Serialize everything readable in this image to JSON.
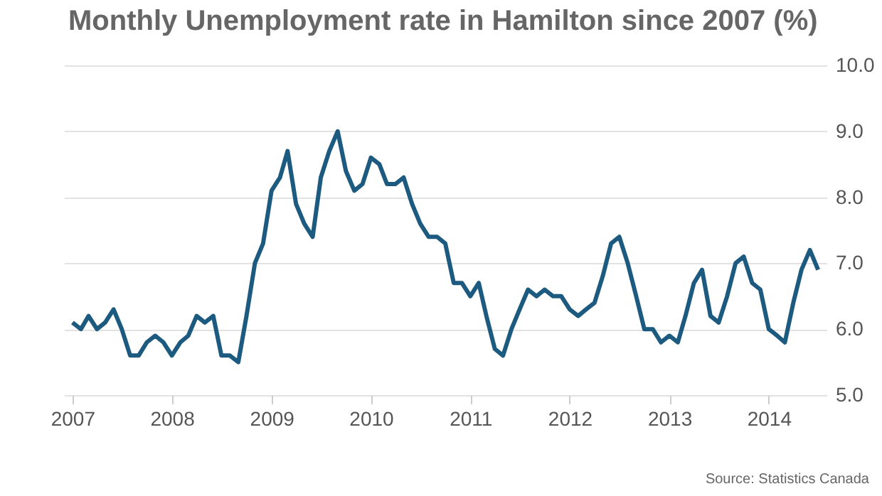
{
  "chart_data": {
    "type": "line",
    "title": "Monthly Unemployment rate in Hamilton since 2007 (%)",
    "x": [
      "2007-01",
      "2007-02",
      "2007-03",
      "2007-04",
      "2007-05",
      "2007-06",
      "2007-07",
      "2007-08",
      "2007-09",
      "2007-10",
      "2007-11",
      "2007-12",
      "2008-01",
      "2008-02",
      "2008-03",
      "2008-04",
      "2008-05",
      "2008-06",
      "2008-07",
      "2008-08",
      "2008-09",
      "2008-10",
      "2008-11",
      "2008-12",
      "2009-01",
      "2009-02",
      "2009-03",
      "2009-04",
      "2009-05",
      "2009-06",
      "2009-07",
      "2009-08",
      "2009-09",
      "2009-10",
      "2009-11",
      "2009-12",
      "2010-01",
      "2010-02",
      "2010-03",
      "2010-04",
      "2010-05",
      "2010-06",
      "2010-07",
      "2010-08",
      "2010-09",
      "2010-10",
      "2010-11",
      "2010-12",
      "2011-01",
      "2011-02",
      "2011-03",
      "2011-04",
      "2011-05",
      "2011-06",
      "2011-07",
      "2011-08",
      "2011-09",
      "2011-10",
      "2011-11",
      "2011-12",
      "2012-01",
      "2012-02",
      "2012-03",
      "2012-04",
      "2012-05",
      "2012-06",
      "2012-07",
      "2012-08",
      "2012-09",
      "2012-10",
      "2012-11",
      "2012-12",
      "2013-01",
      "2013-02",
      "2013-03",
      "2013-04",
      "2013-05",
      "2013-06",
      "2013-07",
      "2013-08",
      "2013-09",
      "2013-10",
      "2013-11",
      "2013-12",
      "2014-01",
      "2014-02",
      "2014-03",
      "2014-04",
      "2014-05",
      "2014-06",
      "2014-07"
    ],
    "series": [
      {
        "color": "#1d5a80",
        "values": [
          6.1,
          6.0,
          6.2,
          6.0,
          6.1,
          6.3,
          6.0,
          5.6,
          5.6,
          5.8,
          5.9,
          5.8,
          5.6,
          5.8,
          5.9,
          6.2,
          6.1,
          6.2,
          5.6,
          5.6,
          5.5,
          6.2,
          7.0,
          7.3,
          8.1,
          8.3,
          8.7,
          7.9,
          7.6,
          7.4,
          8.3,
          8.7,
          9.0,
          8.4,
          8.1,
          8.2,
          8.6,
          8.5,
          8.2,
          8.2,
          8.3,
          7.9,
          7.6,
          7.4,
          7.4,
          7.3,
          6.7,
          6.7,
          6.5,
          6.7,
          6.2,
          5.7,
          5.6,
          6.0,
          6.3,
          6.6,
          6.5,
          6.6,
          6.5,
          6.5,
          6.3,
          6.2,
          6.3,
          6.4,
          6.8,
          7.3,
          7.4,
          7.0,
          6.5,
          6.0,
          6.0,
          5.8,
          5.9,
          5.8,
          6.2,
          6.7,
          6.9,
          6.2,
          6.1,
          6.5,
          7.0,
          7.1,
          6.7,
          6.6,
          6.0,
          5.9,
          5.8,
          6.4,
          6.9,
          7.2,
          6.9
        ]
      }
    ],
    "xlim": [
      "2006-12",
      "2014-08"
    ],
    "xticks": [
      {
        "value": "2007",
        "label": "2007"
      },
      {
        "value": "2008",
        "label": "2008"
      },
      {
        "value": "2009",
        "label": "2009"
      },
      {
        "value": "2010",
        "label": "2010"
      },
      {
        "value": "2011",
        "label": "2011"
      },
      {
        "value": "2012",
        "label": "2012"
      },
      {
        "value": "2013",
        "label": "2013"
      },
      {
        "value": "2014",
        "label": "2014"
      }
    ],
    "ylim": [
      5,
      10
    ],
    "yticks": [
      {
        "value": 5,
        "label": "5.0"
      },
      {
        "value": 6,
        "label": "6.0"
      },
      {
        "value": 7,
        "label": "7.0"
      },
      {
        "value": 8,
        "label": "8.0"
      },
      {
        "value": 9,
        "label": "9.0"
      },
      {
        "value": 10,
        "label": "10.0"
      }
    ],
    "grid": "y",
    "marker": "none",
    "line_style": "solid",
    "annotations": [
      "Source: Statistics Canada"
    ]
  }
}
